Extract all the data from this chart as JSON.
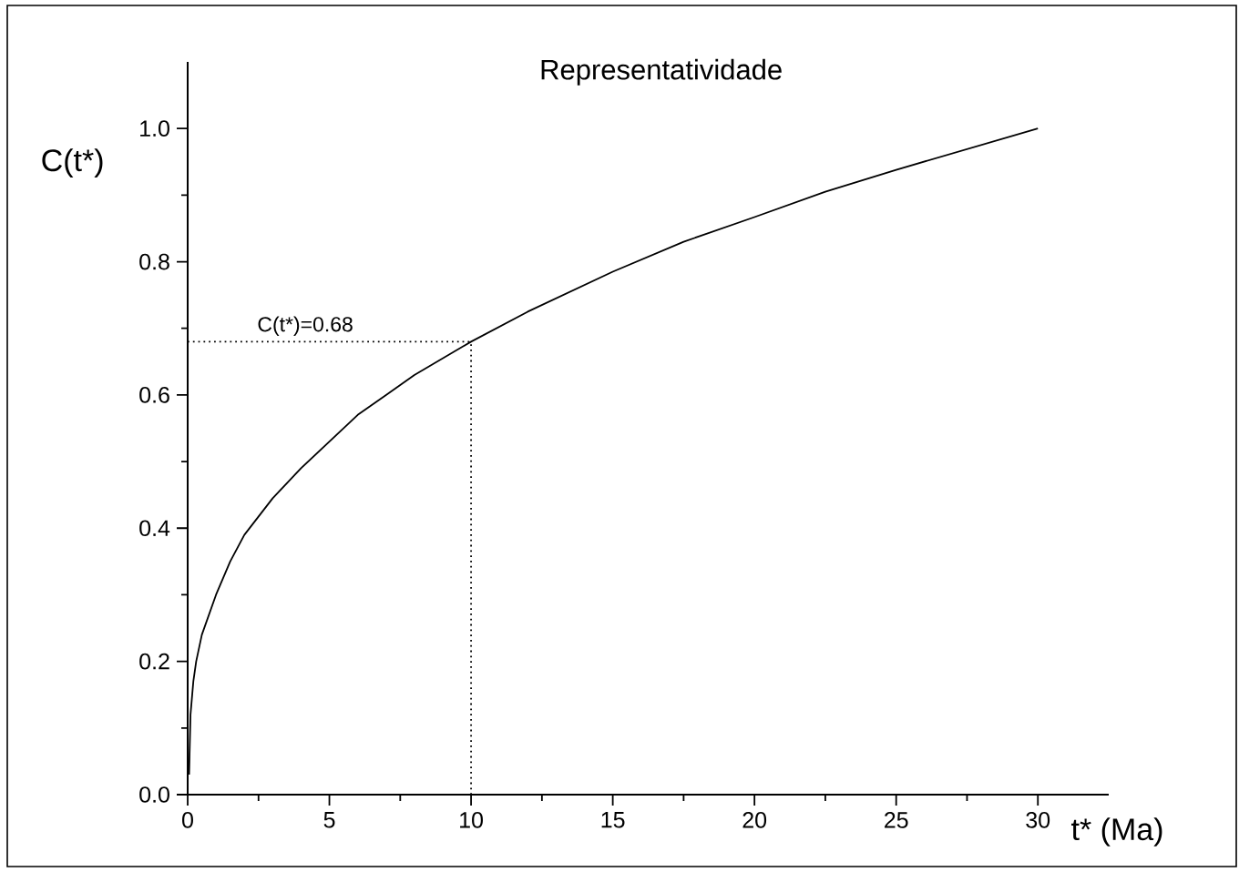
{
  "chart_data": {
    "type": "line",
    "title": "Representatividade",
    "xlabel": "t* (Ma)",
    "ylabel": "C(t*)",
    "x": [
      0.05,
      0.1,
      0.2,
      0.3,
      0.5,
      0.75,
      1,
      1.5,
      2,
      3,
      4,
      5,
      6,
      7,
      8,
      10,
      12,
      15,
      17.5,
      20,
      22.5,
      25,
      30
    ],
    "series": [
      {
        "color": "#000000",
        "values": [
          0.03,
          0.12,
          0.17,
          0.2,
          0.24,
          0.27,
          0.3,
          0.35,
          0.39,
          0.445,
          0.49,
          0.53,
          0.57,
          0.6,
          0.63,
          0.68,
          0.725,
          0.785,
          0.83,
          0.867,
          0.905,
          0.938,
          1.0
        ]
      }
    ],
    "xlim": [
      0,
      32.5
    ],
    "ylim": [
      0,
      1.1
    ],
    "xticks": [
      0,
      5,
      10,
      15,
      20,
      25,
      30
    ],
    "yticks": [
      {
        "value": 0,
        "label": "0.0"
      },
      0.2,
      0.4,
      0.6,
      0.8,
      {
        "value": 1,
        "label": "1.0"
      }
    ],
    "ref_lines": [
      {
        "axis": "y",
        "value": 0.68,
        "label": "C(t*)=0.68",
        "line_style": "dotted"
      },
      {
        "axis": "x",
        "value": 10,
        "line_style": "dotted"
      }
    ],
    "line_style": "solid"
  }
}
